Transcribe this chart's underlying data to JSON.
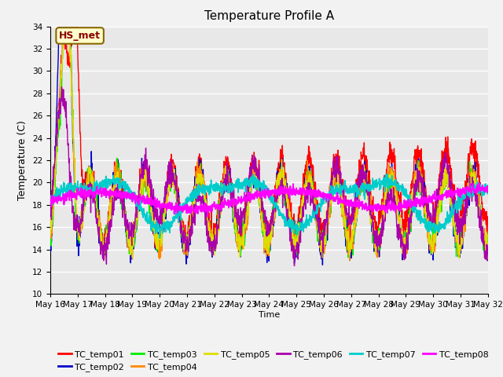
{
  "title": "Temperature Profile A",
  "xlabel": "Time",
  "ylabel": "Temperature (C)",
  "annotation_text": "HS_met",
  "annotation_bg": "#FFFFCC",
  "annotation_border": "#886600",
  "ylim": [
    10,
    34
  ],
  "yticks": [
    10,
    12,
    14,
    16,
    18,
    20,
    22,
    24,
    26,
    28,
    30,
    32,
    34
  ],
  "series_colors": {
    "TC_temp01": "#FF0000",
    "TC_temp02": "#0000CC",
    "TC_temp03": "#00EE00",
    "TC_temp04": "#FF8800",
    "TC_temp05": "#DDDD00",
    "TC_temp06": "#AA00AA",
    "TC_temp07": "#00CCCC",
    "TC_temp08": "#FF00FF"
  },
  "bg_color": "#E8E8E8",
  "grid_color": "#FFFFFF",
  "title_fontsize": 11,
  "legend_fontsize": 8,
  "tick_fontsize": 7.5,
  "n_days": 16,
  "date_start": 16
}
